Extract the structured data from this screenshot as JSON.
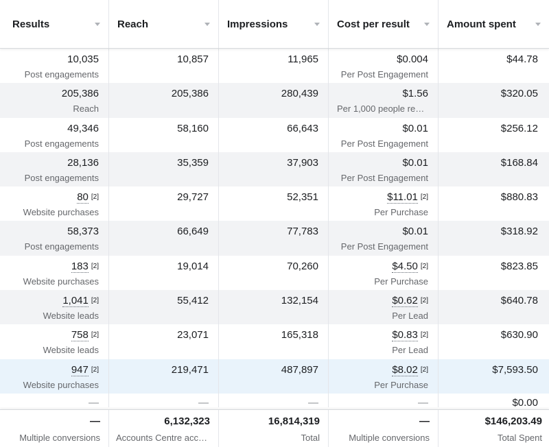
{
  "headers": [
    "Results",
    "Reach",
    "Impressions",
    "Cost per result",
    "Amount spent"
  ],
  "note_marker": "[2]",
  "rows": [
    {
      "results": "10,035",
      "results_sub": "Post engagements",
      "results_note": false,
      "reach": "10,857",
      "impressions": "11,965",
      "cost": "$0.004",
      "cost_sub": "Per Post Engagement",
      "cost_note": false,
      "spent": "$44.78"
    },
    {
      "results": "205,386",
      "results_sub": "Reach",
      "results_note": false,
      "reach": "205,386",
      "impressions": "280,439",
      "cost": "$1.56",
      "cost_sub": "Per 1,000 people rea…",
      "cost_note": false,
      "spent": "$320.05"
    },
    {
      "results": "49,346",
      "results_sub": "Post engagements",
      "results_note": false,
      "reach": "58,160",
      "impressions": "66,643",
      "cost": "$0.01",
      "cost_sub": "Per Post Engagement",
      "cost_note": false,
      "spent": "$256.12"
    },
    {
      "results": "28,136",
      "results_sub": "Post engagements",
      "results_note": false,
      "reach": "35,359",
      "impressions": "37,903",
      "cost": "$0.01",
      "cost_sub": "Per Post Engagement",
      "cost_note": false,
      "spent": "$168.84"
    },
    {
      "results": "80",
      "results_sub": "Website purchases",
      "results_note": true,
      "reach": "29,727",
      "impressions": "52,351",
      "cost": "$11.01",
      "cost_sub": "Per Purchase",
      "cost_note": true,
      "spent": "$880.83"
    },
    {
      "results": "58,373",
      "results_sub": "Post engagements",
      "results_note": false,
      "reach": "66,649",
      "impressions": "77,783",
      "cost": "$0.01",
      "cost_sub": "Per Post Engagement",
      "cost_note": false,
      "spent": "$318.92"
    },
    {
      "results": "183",
      "results_sub": "Website purchases",
      "results_note": true,
      "reach": "19,014",
      "impressions": "70,260",
      "cost": "$4.50",
      "cost_sub": "Per Purchase",
      "cost_note": true,
      "spent": "$823.85"
    },
    {
      "results": "1,041",
      "results_sub": "Website leads",
      "results_note": true,
      "reach": "55,412",
      "impressions": "132,154",
      "cost": "$0.62",
      "cost_sub": "Per Lead",
      "cost_note": true,
      "spent": "$640.78"
    },
    {
      "results": "758",
      "results_sub": "Website leads",
      "results_note": true,
      "reach": "23,071",
      "impressions": "165,318",
      "cost": "$0.83",
      "cost_sub": "Per Lead",
      "cost_note": true,
      "spent": "$630.90"
    },
    {
      "results": "947",
      "results_sub": "Website purchases",
      "results_note": true,
      "reach": "219,471",
      "impressions": "487,897",
      "cost": "$8.02",
      "cost_sub": "Per Purchase",
      "cost_note": true,
      "spent": "$7,593.50",
      "selected": true
    }
  ],
  "partial_row": {
    "results": "—",
    "reach": "—",
    "impressions": "—",
    "cost": "—",
    "spent": "$0.00"
  },
  "totals": {
    "results": "—",
    "results_sub": "Multiple conversions",
    "reach": "6,132,323",
    "reach_sub": "Accounts Centre acco…",
    "impressions": "16,814,319",
    "impressions_sub": "Total",
    "cost": "—",
    "cost_sub": "Multiple conversions",
    "spent": "$146,203.49",
    "spent_sub": "Total Spent"
  }
}
